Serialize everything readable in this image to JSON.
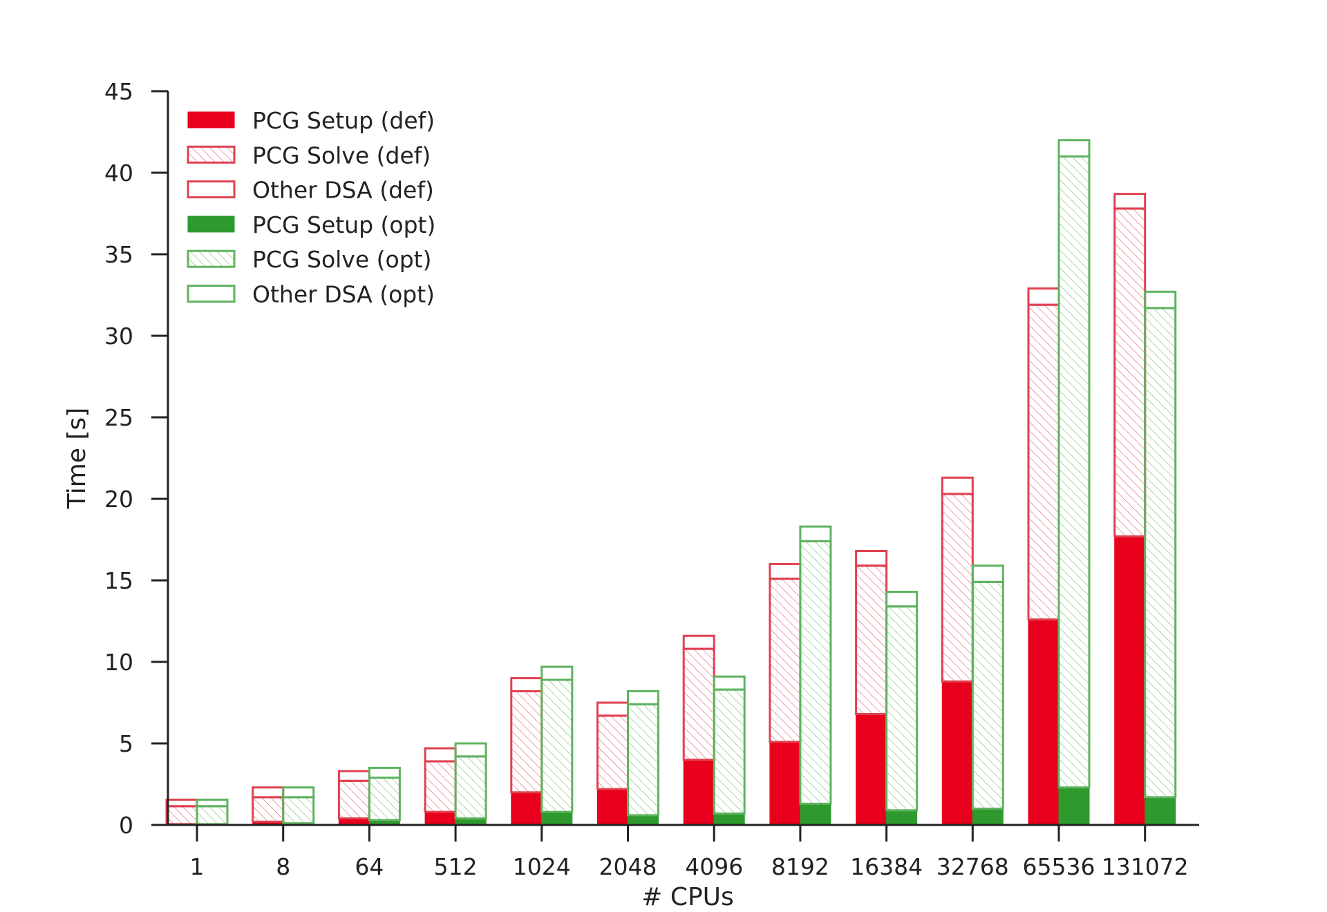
{
  "chart_data": {
    "type": "bar",
    "stacked": true,
    "grouped": true,
    "title": "",
    "xlabel": "# CPUs",
    "ylabel": "Time [s]",
    "ylim": [
      0,
      45
    ],
    "yticks": [
      "0",
      "5",
      "10",
      "15",
      "20",
      "25",
      "30",
      "35",
      "40",
      "45"
    ],
    "grid": false,
    "legend_position": "top-left",
    "categories": [
      "1",
      "8",
      "64",
      "512",
      "1024",
      "2048",
      "4096",
      "8192",
      "16384",
      "32768",
      "65536",
      "131072"
    ],
    "colors": {
      "def": "#e8001c",
      "opt": "#2e9a2e",
      "def_hatch": "#e04050",
      "opt_hatch": "#5fb35f"
    },
    "series": [
      {
        "name": "PCG Setup (def)",
        "group": "def",
        "style": "solid",
        "values": [
          0.05,
          0.2,
          0.4,
          0.8,
          2.0,
          2.2,
          4.0,
          5.1,
          6.8,
          8.8,
          12.6,
          17.7
        ]
      },
      {
        "name": "PCG Solve (def)",
        "group": "def",
        "style": "hatch",
        "values": [
          1.1,
          1.5,
          2.3,
          3.1,
          6.2,
          4.5,
          6.8,
          10.0,
          9.1,
          11.5,
          19.3,
          20.1
        ]
      },
      {
        "name": "Other DSA (def)",
        "group": "def",
        "style": "outline",
        "values": [
          0.4,
          0.6,
          0.6,
          0.8,
          0.8,
          0.8,
          0.8,
          0.9,
          0.9,
          1.0,
          1.0,
          0.9
        ]
      },
      {
        "name": "PCG Setup (opt)",
        "group": "opt",
        "style": "solid",
        "values": [
          0.05,
          0.1,
          0.3,
          0.4,
          0.8,
          0.6,
          0.7,
          1.3,
          0.9,
          1.0,
          2.3,
          1.7
        ]
      },
      {
        "name": "PCG Solve (opt)",
        "group": "opt",
        "style": "hatch",
        "values": [
          1.1,
          1.6,
          2.6,
          3.8,
          8.1,
          6.8,
          7.6,
          16.1,
          12.5,
          13.9,
          38.7,
          30.0
        ]
      },
      {
        "name": "Other DSA (opt)",
        "group": "opt",
        "style": "outline",
        "values": [
          0.4,
          0.6,
          0.6,
          0.8,
          0.8,
          0.8,
          0.8,
          0.9,
          0.9,
          1.0,
          1.0,
          1.0
        ]
      }
    ]
  }
}
